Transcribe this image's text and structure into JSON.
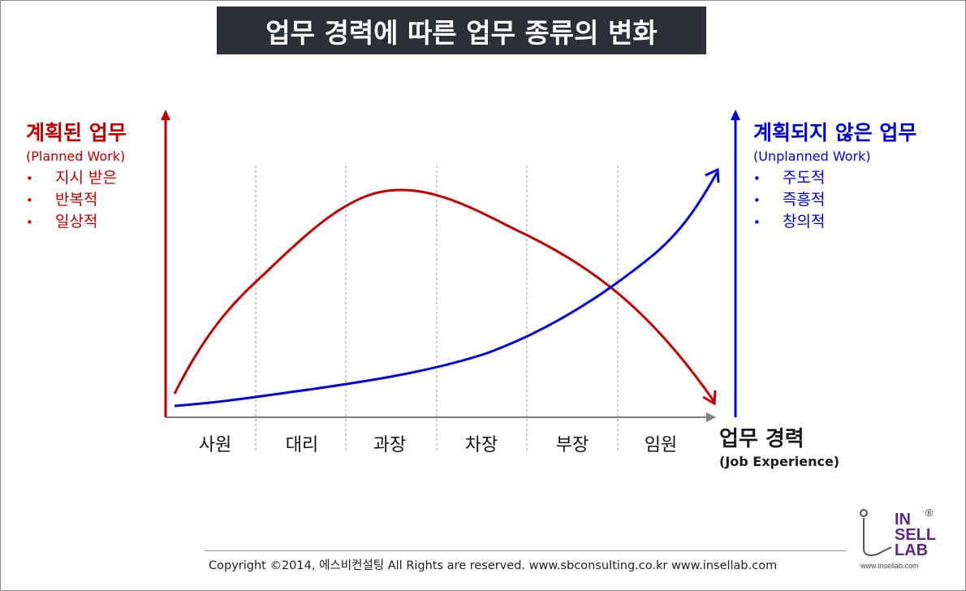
{
  "title": "업무 경력에 따른 업무 종류의 변화",
  "left_axis": {
    "heading": "계획된 업무",
    "subheading": "(Planned Work)",
    "items": [
      "지시 받은",
      "반복적",
      "일상적"
    ],
    "bullet": "•",
    "color": "#c00000"
  },
  "right_axis": {
    "heading": "계획되지 않은 업무",
    "subheading": "(Unplanned Work)",
    "items": [
      "주도적",
      "즉흥적",
      "창의적"
    ],
    "bullet": "•",
    "color": "#0000dd"
  },
  "x_axis": {
    "heading": "업무 경력",
    "subheading": "(Job Experience)",
    "stages": [
      "사원",
      "대리",
      "과장",
      "차장",
      "부장",
      "임원"
    ]
  },
  "chart_data": {
    "type": "line",
    "x": [
      "사원",
      "대리",
      "과장",
      "차장",
      "부장",
      "임원"
    ],
    "series": [
      {
        "name": "계획된 업무",
        "color": "#c00000"
      },
      {
        "name": "계획되지 않은 업무",
        "color": "#0000dd"
      }
    ],
    "grid": "dashed vertical separators between stages"
  },
  "footer": {
    "text": "Copyright ©2014, 에스비컨설팅 All Rights are reserved.    www.sbconsulting.co.kr    www.insellab.com"
  },
  "logo": {
    "line1": "IN",
    "line2": "SELL",
    "line3": "LAB",
    "mark": "®",
    "url": "www.insellab.com"
  }
}
